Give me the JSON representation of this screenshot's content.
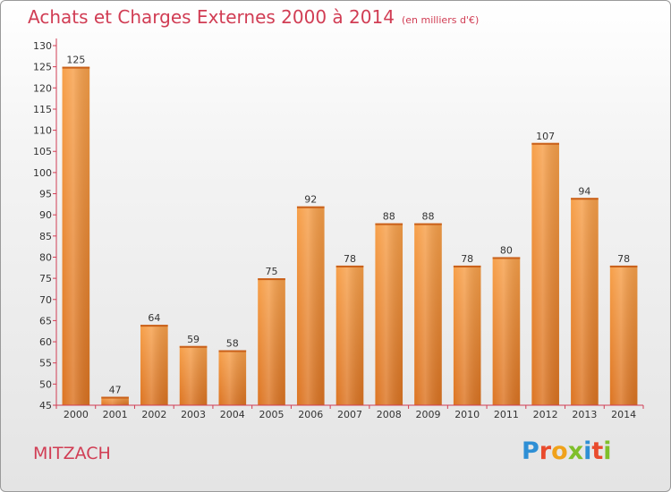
{
  "chart_data": {
    "type": "bar",
    "title": "Achats et Charges Externes 2000 à 2014",
    "subtitle": "(en milliers d'€)",
    "categories": [
      "2000",
      "2001",
      "2002",
      "2003",
      "2004",
      "2005",
      "2006",
      "2007",
      "2008",
      "2009",
      "2010",
      "2011",
      "2012",
      "2013",
      "2014"
    ],
    "values": [
      125,
      47,
      64,
      59,
      58,
      75,
      92,
      78,
      88,
      88,
      78,
      80,
      107,
      94,
      78
    ],
    "data_labels": [
      "125",
      "47",
      "64",
      "59",
      "58",
      "75",
      "92",
      "78",
      "88",
      "88",
      "78",
      "80",
      "107",
      "94",
      "78"
    ],
    "ylim": [
      45,
      130
    ],
    "yticks": [
      45,
      50,
      55,
      60,
      65,
      70,
      75,
      80,
      85,
      90,
      95,
      100,
      105,
      110,
      115,
      120,
      125,
      130
    ],
    "ytick_labels": [
      "45",
      "50",
      "55",
      "60",
      "65",
      "70",
      "75",
      "80",
      "85",
      "90",
      "95",
      "100",
      "105",
      "110",
      "115",
      "120",
      "125",
      "130"
    ],
    "xlabel": "",
    "ylabel": "",
    "grid": false,
    "legend": "none",
    "bar_color": "#f2953e",
    "bar_color_dark": "#d9701c",
    "axis_color": "#d13d54"
  },
  "footer": {
    "commune": "MITZACH",
    "logo_letters": [
      "P",
      "r",
      "o",
      "x",
      "i",
      "t",
      "i"
    ]
  }
}
